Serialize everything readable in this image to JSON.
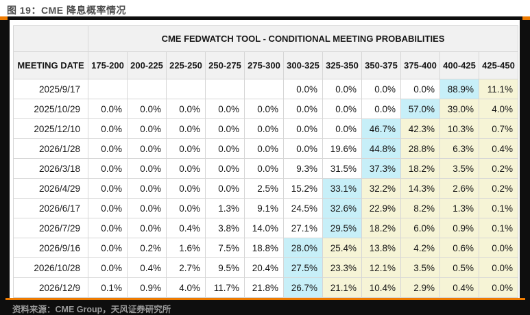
{
  "title": "图 19：CME 降息概率情况",
  "source": "资料来源：CME Group，天风证券研究所",
  "colors": {
    "accent_orange": "#ee7b00",
    "band_black": "#0e0e0e",
    "header_bg": "#f1f1f1",
    "border": "#d6d6d6",
    "highlight_max": "#c7eff8",
    "highlight_after": "#f6f4d6",
    "title_color": "#4d4d4d",
    "source_color": "#9b9b9b"
  },
  "table": {
    "main_header": "CME FEDWATCH TOOL - CONDITIONAL MEETING PROBABILITIES",
    "date_header": "MEETING DATE",
    "range_headers": [
      "175-200",
      "200-225",
      "225-250",
      "250-275",
      "275-300",
      "300-325",
      "325-350",
      "350-375",
      "375-400",
      "400-425",
      "425-450"
    ],
    "rows": [
      {
        "date": "2025/9/17",
        "max_index": 9,
        "values": [
          "",
          "",
          "",
          "",
          "",
          "0.0%",
          "0.0%",
          "0.0%",
          "0.0%",
          "88.9%",
          "11.1%"
        ]
      },
      {
        "date": "2025/10/29",
        "max_index": 8,
        "values": [
          "0.0%",
          "0.0%",
          "0.0%",
          "0.0%",
          "0.0%",
          "0.0%",
          "0.0%",
          "0.0%",
          "57.0%",
          "39.0%",
          "4.0%"
        ]
      },
      {
        "date": "2025/12/10",
        "max_index": 7,
        "values": [
          "0.0%",
          "0.0%",
          "0.0%",
          "0.0%",
          "0.0%",
          "0.0%",
          "0.0%",
          "46.7%",
          "42.3%",
          "10.3%",
          "0.7%"
        ]
      },
      {
        "date": "2026/1/28",
        "max_index": 7,
        "values": [
          "0.0%",
          "0.0%",
          "0.0%",
          "0.0%",
          "0.0%",
          "0.0%",
          "19.6%",
          "44.8%",
          "28.8%",
          "6.3%",
          "0.4%"
        ]
      },
      {
        "date": "2026/3/18",
        "max_index": 7,
        "values": [
          "0.0%",
          "0.0%",
          "0.0%",
          "0.0%",
          "0.0%",
          "9.3%",
          "31.5%",
          "37.3%",
          "18.2%",
          "3.5%",
          "0.2%"
        ]
      },
      {
        "date": "2026/4/29",
        "max_index": 6,
        "values": [
          "0.0%",
          "0.0%",
          "0.0%",
          "0.0%",
          "2.5%",
          "15.2%",
          "33.1%",
          "32.2%",
          "14.3%",
          "2.6%",
          "0.2%"
        ]
      },
      {
        "date": "2026/6/17",
        "max_index": 6,
        "values": [
          "0.0%",
          "0.0%",
          "0.0%",
          "1.3%",
          "9.1%",
          "24.5%",
          "32.6%",
          "22.9%",
          "8.2%",
          "1.3%",
          "0.1%"
        ]
      },
      {
        "date": "2026/7/29",
        "max_index": 6,
        "values": [
          "0.0%",
          "0.0%",
          "0.4%",
          "3.8%",
          "14.0%",
          "27.1%",
          "29.5%",
          "18.2%",
          "6.0%",
          "0.9%",
          "0.1%"
        ]
      },
      {
        "date": "2026/9/16",
        "max_index": 5,
        "values": [
          "0.0%",
          "0.2%",
          "1.6%",
          "7.5%",
          "18.8%",
          "28.0%",
          "25.4%",
          "13.8%",
          "4.2%",
          "0.6%",
          "0.0%"
        ]
      },
      {
        "date": "2026/10/28",
        "max_index": 5,
        "values": [
          "0.0%",
          "0.4%",
          "2.7%",
          "9.5%",
          "20.4%",
          "27.5%",
          "23.3%",
          "12.1%",
          "3.5%",
          "0.5%",
          "0.0%"
        ]
      },
      {
        "date": "2026/12/9",
        "max_index": 5,
        "values": [
          "0.1%",
          "0.9%",
          "4.0%",
          "11.7%",
          "21.8%",
          "26.7%",
          "21.1%",
          "10.4%",
          "2.9%",
          "0.4%",
          "0.0%"
        ]
      }
    ]
  }
}
